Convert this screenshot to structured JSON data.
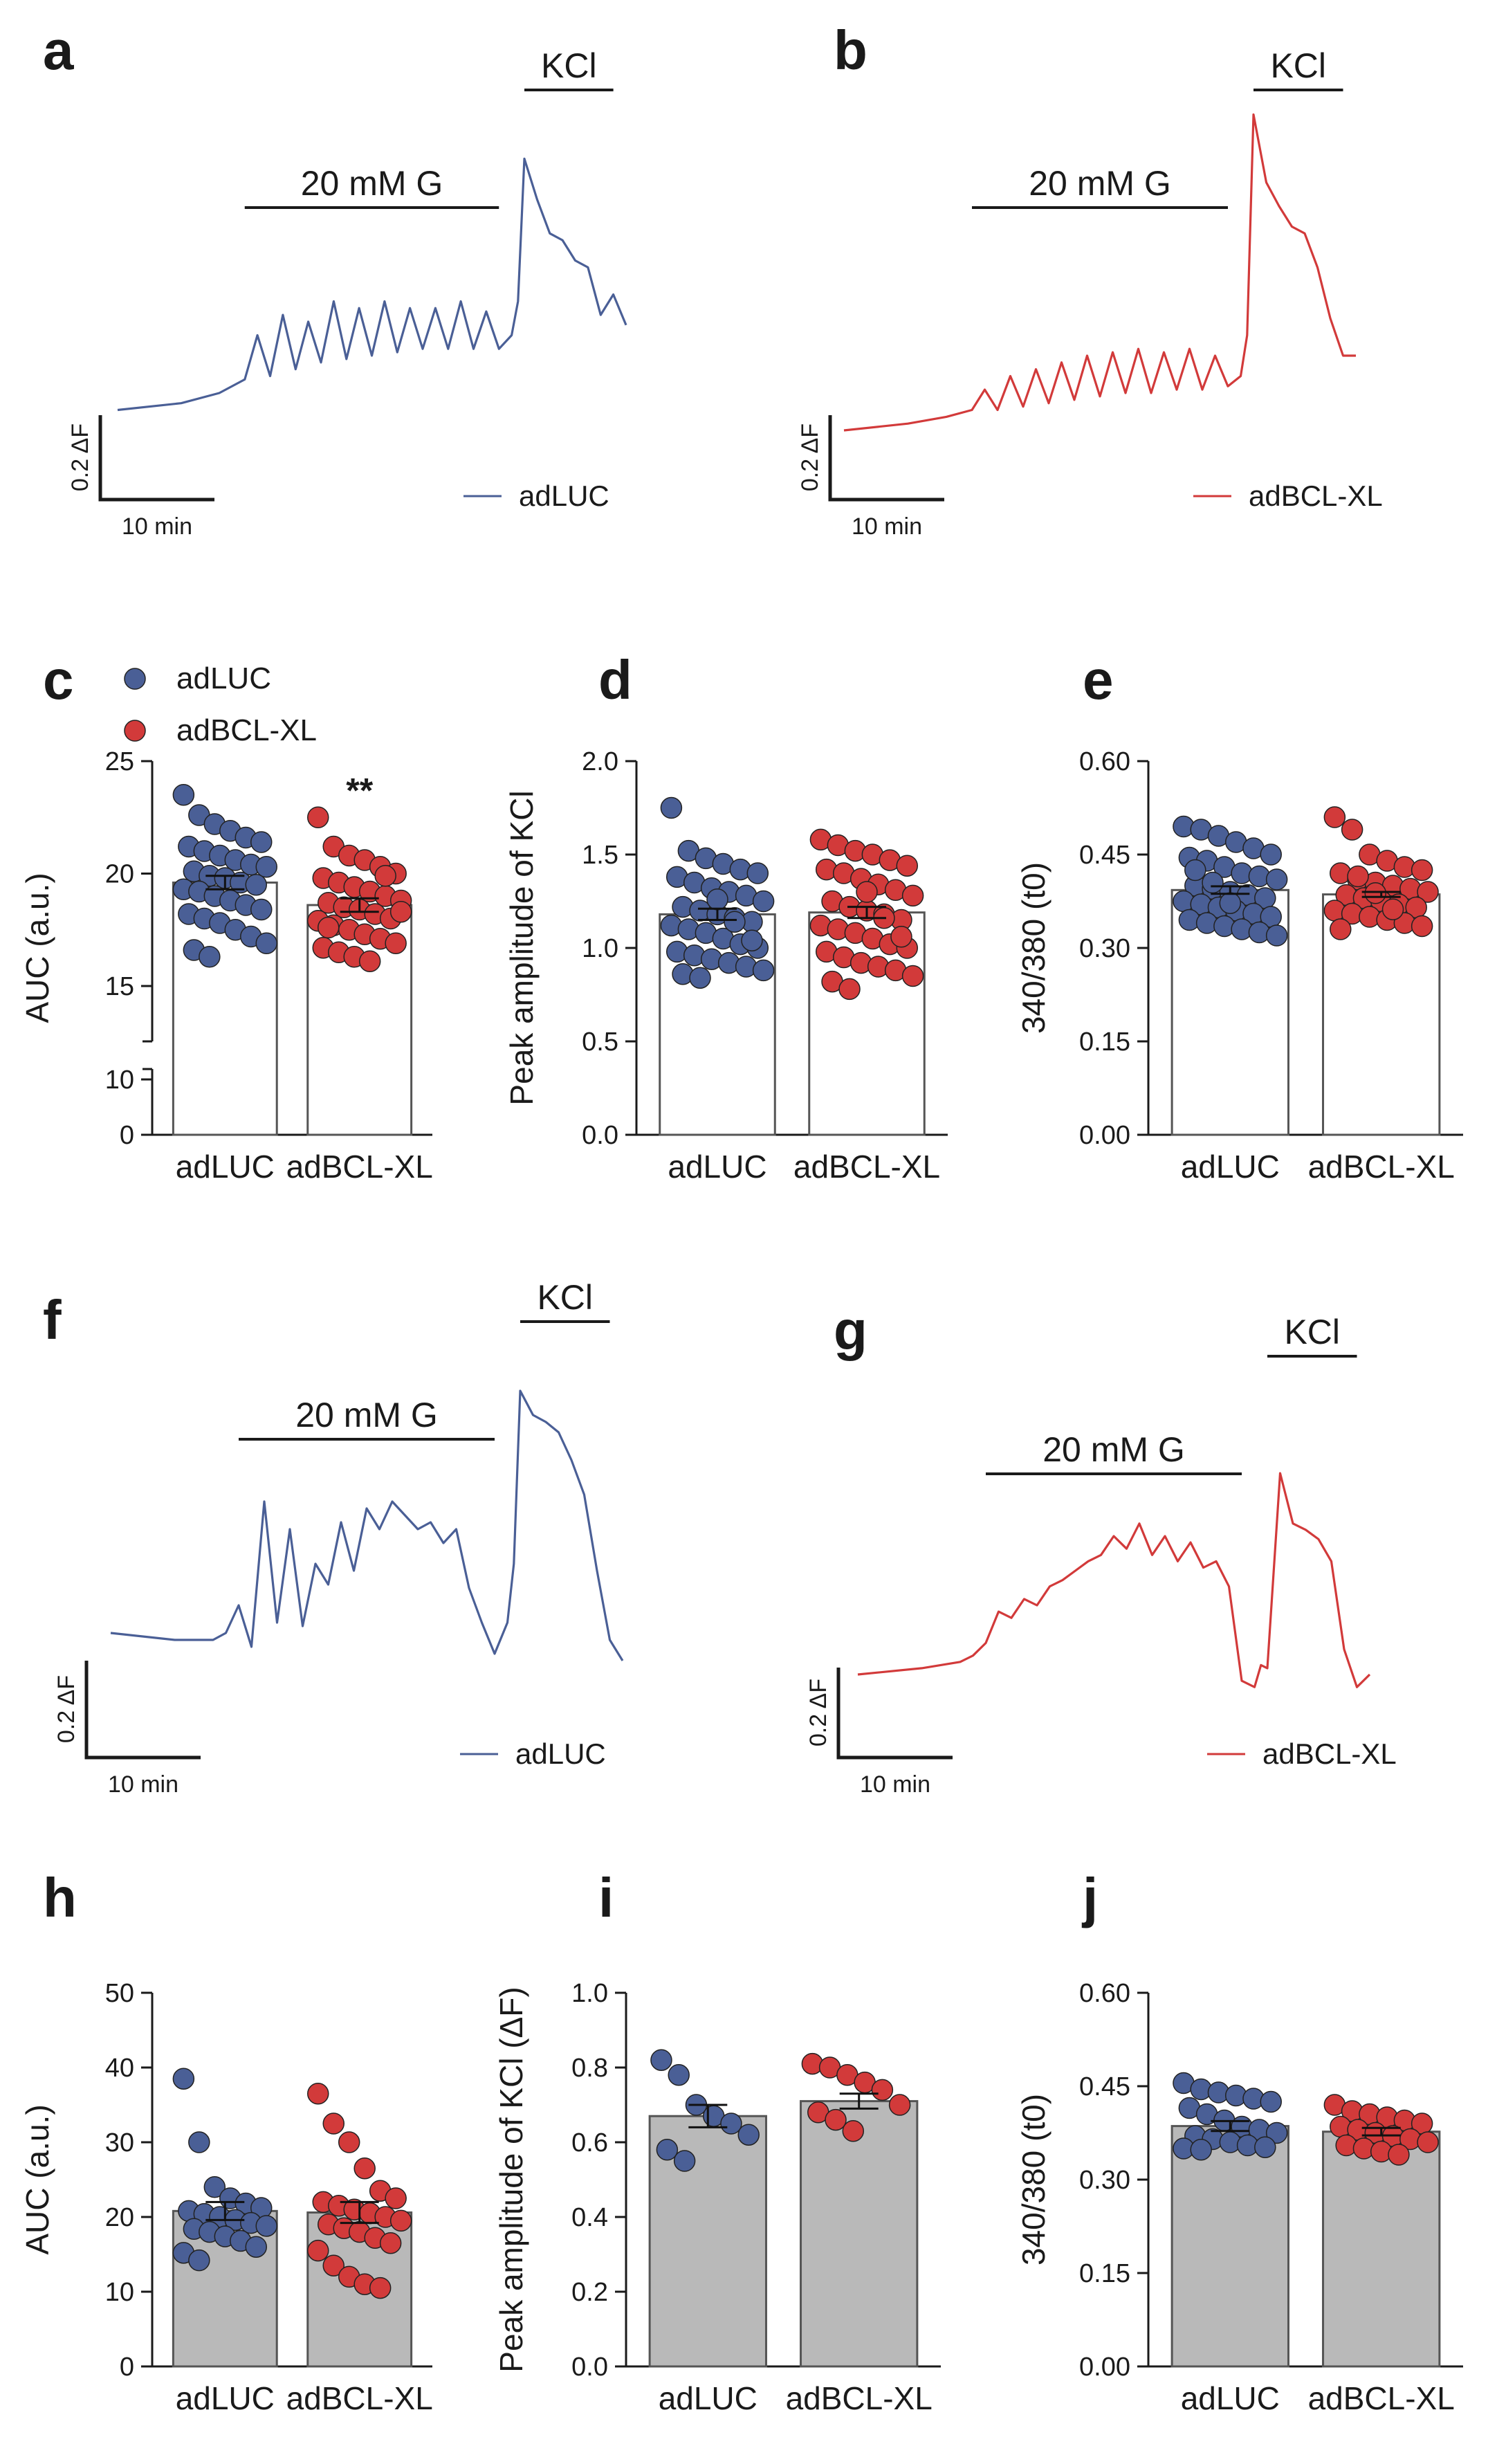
{
  "colors": {
    "blue": "#4a5f96",
    "red": "#d23a3a",
    "bar_grey": "#b9b9b9",
    "axis": "#1a1a1a"
  },
  "chart_data": [
    {
      "id": "a",
      "type": "line",
      "panel_label": "a",
      "annotations": [
        {
          "label": "20 mM G",
          "range": [
            10,
            30
          ]
        },
        {
          "label": "KCl",
          "range": [
            32,
            39
          ]
        }
      ],
      "scalebar": {
        "y_label": "0.2 ΔF",
        "x_label": "10 min"
      },
      "legend": "adLUC",
      "series": [
        {
          "name": "adLUC",
          "color": "#4a5f96",
          "x": [
            0,
            5,
            8,
            10,
            11,
            12,
            13,
            14,
            15,
            16,
            17,
            18,
            19,
            20,
            21,
            22,
            23,
            24,
            25,
            26,
            27,
            28,
            29,
            30,
            31,
            31.5,
            32,
            33,
            34,
            35,
            36,
            37,
            38,
            39,
            40
          ],
          "y": [
            0.28,
            0.3,
            0.33,
            0.37,
            0.5,
            0.38,
            0.56,
            0.4,
            0.54,
            0.42,
            0.6,
            0.43,
            0.58,
            0.44,
            0.6,
            0.45,
            0.58,
            0.46,
            0.58,
            0.46,
            0.6,
            0.46,
            0.57,
            0.46,
            0.5,
            0.6,
            1.02,
            0.9,
            0.8,
            0.78,
            0.72,
            0.7,
            0.56,
            0.62,
            0.53
          ]
        }
      ]
    },
    {
      "id": "b",
      "type": "line",
      "panel_label": "b",
      "annotations": [
        {
          "label": "20 mM G",
          "range": [
            10,
            30
          ]
        },
        {
          "label": "KCl",
          "range": [
            32,
            39
          ]
        }
      ],
      "scalebar": {
        "y_label": "0.2 ΔF",
        "x_label": "10 min"
      },
      "legend": "adBCL-XL",
      "series": [
        {
          "name": "adBCL-XL",
          "color": "#d23a3a",
          "x": [
            0,
            5,
            8,
            10,
            11,
            12,
            13,
            14,
            15,
            16,
            17,
            18,
            19,
            20,
            21,
            22,
            23,
            24,
            25,
            26,
            27,
            28,
            29,
            30,
            31,
            31.5,
            32,
            33,
            34,
            35,
            36,
            37,
            38,
            39,
            40
          ],
          "y": [
            0.22,
            0.24,
            0.26,
            0.28,
            0.34,
            0.28,
            0.38,
            0.29,
            0.4,
            0.3,
            0.42,
            0.31,
            0.44,
            0.32,
            0.45,
            0.33,
            0.46,
            0.33,
            0.45,
            0.34,
            0.46,
            0.34,
            0.44,
            0.35,
            0.38,
            0.5,
            1.15,
            0.95,
            0.88,
            0.82,
            0.8,
            0.7,
            0.55,
            0.44,
            0.44
          ]
        }
      ]
    },
    {
      "id": "c",
      "type": "bar",
      "panel_label": "c",
      "categories": [
        "adLUC",
        "adBCL-XL"
      ],
      "values": [
        19.6,
        18.6
      ],
      "sem": [
        0.3,
        0.3
      ],
      "ylabel": "AUC (a.u.)",
      "yticks": [
        "0",
        "10",
        "15",
        "20",
        "25"
      ],
      "axis_break": [
        10,
        13
      ],
      "ylim": [
        0,
        25
      ],
      "significance": {
        "category": "adBCL-XL",
        "text": "**"
      },
      "bar_fill": "#ffffff",
      "legend": [
        {
          "name": "adLUC",
          "color": "#4a5f96"
        },
        {
          "name": "adBCL-XL",
          "color": "#d23a3a"
        }
      ],
      "points": [
        [
          23.5,
          22.6,
          22.2,
          21.9,
          21.6,
          21.4,
          21.2,
          21.0,
          20.8,
          20.6,
          20.4,
          20.3,
          20.1,
          19.9,
          19.8,
          19.6,
          19.5,
          19.3,
          19.2,
          19.0,
          18.8,
          18.6,
          18.4,
          18.2,
          18.0,
          17.8,
          17.5,
          17.2,
          16.9,
          16.6,
          16.3
        ],
        [
          22.5,
          21.2,
          20.8,
          20.6,
          20.3,
          20.0,
          19.8,
          19.6,
          19.4,
          19.2,
          19.0,
          18.8,
          18.7,
          18.5,
          18.4,
          18.2,
          18.0,
          17.9,
          17.7,
          17.5,
          17.3,
          17.1,
          16.9,
          16.7,
          16.5,
          16.3,
          16.1,
          19.9,
          18.3,
          17.6
        ]
      ]
    },
    {
      "id": "d",
      "type": "bar",
      "panel_label": "d",
      "categories": [
        "adLUC",
        "adBCL-XL"
      ],
      "values": [
        1.18,
        1.19
      ],
      "sem": [
        0.03,
        0.03
      ],
      "ylabel": "Peak amplitude of KCl",
      "yticks": [
        "0.0",
        "0.5",
        "1.0",
        "1.5",
        "2.0"
      ],
      "ylim": [
        0,
        2.0
      ],
      "bar_fill": "#ffffff",
      "points": [
        [
          1.75,
          1.52,
          1.48,
          1.45,
          1.42,
          1.4,
          1.38,
          1.35,
          1.32,
          1.3,
          1.28,
          1.25,
          1.22,
          1.2,
          1.18,
          1.16,
          1.14,
          1.12,
          1.1,
          1.08,
          1.05,
          1.02,
          1.0,
          0.98,
          0.96,
          0.94,
          0.92,
          0.9,
          0.88,
          0.86,
          0.84,
          1.26,
          1.14,
          1.04
        ],
        [
          1.58,
          1.55,
          1.52,
          1.5,
          1.47,
          1.44,
          1.42,
          1.4,
          1.37,
          1.34,
          1.31,
          1.28,
          1.25,
          1.22,
          1.2,
          1.18,
          1.15,
          1.12,
          1.1,
          1.08,
          1.05,
          1.02,
          1.0,
          0.98,
          0.95,
          0.92,
          0.9,
          0.88,
          0.85,
          0.82,
          0.78,
          1.3,
          1.16,
          1.06
        ]
      ]
    },
    {
      "id": "e",
      "type": "bar",
      "panel_label": "e",
      "categories": [
        "adLUC",
        "adBCL-XL"
      ],
      "values": [
        0.393,
        0.386
      ],
      "sem": [
        0.006,
        0.004
      ],
      "ylabel": "340/380 (t0)",
      "yticks": [
        "0.00",
        "0.15",
        "0.30",
        "0.45",
        "0.60"
      ],
      "ylim": [
        0,
        0.6
      ],
      "bar_fill": "#ffffff",
      "points": [
        [
          0.495,
          0.49,
          0.48,
          0.47,
          0.46,
          0.45,
          0.445,
          0.44,
          0.43,
          0.42,
          0.415,
          0.41,
          0.4,
          0.395,
          0.39,
          0.385,
          0.38,
          0.375,
          0.37,
          0.365,
          0.36,
          0.355,
          0.35,
          0.345,
          0.34,
          0.335,
          0.33,
          0.325,
          0.32,
          0.425,
          0.405,
          0.372
        ],
        [
          0.51,
          0.49,
          0.45,
          0.44,
          0.43,
          0.425,
          0.42,
          0.41,
          0.405,
          0.4,
          0.395,
          0.39,
          0.385,
          0.38,
          0.375,
          0.37,
          0.365,
          0.36,
          0.355,
          0.35,
          0.345,
          0.34,
          0.335,
          0.33,
          0.415,
          0.388,
          0.362
        ]
      ]
    },
    {
      "id": "f",
      "type": "line",
      "panel_label": "f",
      "annotations": [
        {
          "label": "20 mM G",
          "range": [
            10,
            30
          ]
        },
        {
          "label": "KCl",
          "range": [
            32,
            39
          ]
        }
      ],
      "scalebar": {
        "y_label": "0.2 ΔF",
        "x_label": "10 min"
      },
      "legend": "adLUC",
      "series": [
        {
          "name": "adLUC",
          "color": "#4a5f96",
          "x": [
            0,
            5,
            8,
            9,
            10,
            11,
            12,
            13,
            14,
            15,
            16,
            17,
            18,
            19,
            20,
            21,
            22,
            23,
            24,
            25,
            26,
            27,
            28,
            29,
            30,
            31,
            31.5,
            32,
            33,
            34,
            35,
            36,
            37,
            38,
            39,
            40
          ],
          "y": [
            0.32,
            0.3,
            0.3,
            0.32,
            0.4,
            0.28,
            0.7,
            0.35,
            0.62,
            0.34,
            0.52,
            0.46,
            0.64,
            0.5,
            0.68,
            0.62,
            0.7,
            0.66,
            0.62,
            0.64,
            0.58,
            0.62,
            0.45,
            0.35,
            0.26,
            0.35,
            0.52,
            1.02,
            0.95,
            0.93,
            0.9,
            0.82,
            0.72,
            0.5,
            0.3,
            0.24
          ]
        }
      ]
    },
    {
      "id": "g",
      "type": "line",
      "panel_label": "g",
      "annotations": [
        {
          "label": "20 mM G",
          "range": [
            10,
            30
          ]
        },
        {
          "label": "KCl",
          "range": [
            32,
            39
          ]
        }
      ],
      "scalebar": {
        "y_label": "0.2 ΔF",
        "x_label": "10 min"
      },
      "legend": "adBCL-XL",
      "series": [
        {
          "name": "adBCL-XL",
          "color": "#d23a3a",
          "x": [
            0,
            5,
            8,
            9,
            10,
            11,
            12,
            13,
            14,
            15,
            16,
            17,
            18,
            19,
            20,
            21,
            22,
            23,
            24,
            25,
            26,
            27,
            28,
            29,
            30,
            31,
            31.5,
            32,
            33,
            34,
            35,
            36,
            37,
            38,
            39,
            40
          ],
          "y": [
            0.22,
            0.24,
            0.26,
            0.28,
            0.32,
            0.42,
            0.4,
            0.46,
            0.44,
            0.5,
            0.52,
            0.55,
            0.58,
            0.6,
            0.66,
            0.62,
            0.7,
            0.6,
            0.66,
            0.58,
            0.64,
            0.56,
            0.58,
            0.5,
            0.2,
            0.18,
            0.25,
            0.24,
            0.86,
            0.7,
            0.68,
            0.65,
            0.58,
            0.3,
            0.18,
            0.22
          ]
        }
      ]
    },
    {
      "id": "h",
      "type": "bar",
      "panel_label": "h",
      "categories": [
        "adLUC",
        "adBCL-XL"
      ],
      "values": [
        20.8,
        20.6
      ],
      "sem": [
        1.2,
        1.4
      ],
      "ylabel": "AUC (a.u.)",
      "yticks": [
        "0",
        "10",
        "20",
        "30",
        "40",
        "50"
      ],
      "ylim": [
        0,
        50
      ],
      "bar_fill": "#b9b9b9",
      "points": [
        [
          38.5,
          30.0,
          24.0,
          22.5,
          21.8,
          21.2,
          20.8,
          20.4,
          20.0,
          19.6,
          19.2,
          18.8,
          18.4,
          18.0,
          17.4,
          16.8,
          16.0,
          15.2,
          14.2
        ],
        [
          36.5,
          32.5,
          30.0,
          26.5,
          23.5,
          22.5,
          22.0,
          21.5,
          21.0,
          20.5,
          20.0,
          19.5,
          19.0,
          18.5,
          18.0,
          17.2,
          16.5,
          15.5,
          13.5,
          12.0,
          11.0,
          10.5
        ]
      ]
    },
    {
      "id": "i",
      "type": "bar",
      "panel_label": "i",
      "categories": [
        "adLUC",
        "adBCL-XL"
      ],
      "values": [
        0.67,
        0.71
      ],
      "sem": [
        0.03,
        0.02
      ],
      "ylabel": "Peak amplitude of KCl (ΔF)",
      "yticks": [
        "0.0",
        "0.2",
        "0.4",
        "0.6",
        "0.8",
        "1.0"
      ],
      "ylim": [
        0,
        1.0
      ],
      "bar_fill": "#b9b9b9",
      "points": [
        [
          0.82,
          0.78,
          0.7,
          0.67,
          0.65,
          0.62,
          0.58,
          0.55
        ],
        [
          0.81,
          0.8,
          0.78,
          0.76,
          0.74,
          0.7,
          0.68,
          0.66,
          0.63
        ]
      ]
    },
    {
      "id": "j",
      "type": "bar",
      "panel_label": "j",
      "categories": [
        "adLUC",
        "adBCL-XL"
      ],
      "values": [
        0.386,
        0.377
      ],
      "sem": [
        0.008,
        0.006
      ],
      "ylabel": "340/380 (t0)",
      "yticks": [
        "0.00",
        "0.15",
        "0.30",
        "0.45",
        "0.60"
      ],
      "ylim": [
        0,
        0.6
      ],
      "bar_fill": "#b9b9b9",
      "points": [
        [
          0.455,
          0.445,
          0.44,
          0.435,
          0.43,
          0.425,
          0.415,
          0.405,
          0.395,
          0.385,
          0.38,
          0.375,
          0.37,
          0.365,
          0.36,
          0.355,
          0.352,
          0.35,
          0.348
        ],
        [
          0.42,
          0.41,
          0.405,
          0.4,
          0.395,
          0.39,
          0.385,
          0.38,
          0.375,
          0.37,
          0.365,
          0.36,
          0.355,
          0.35,
          0.345,
          0.34
        ]
      ]
    }
  ]
}
